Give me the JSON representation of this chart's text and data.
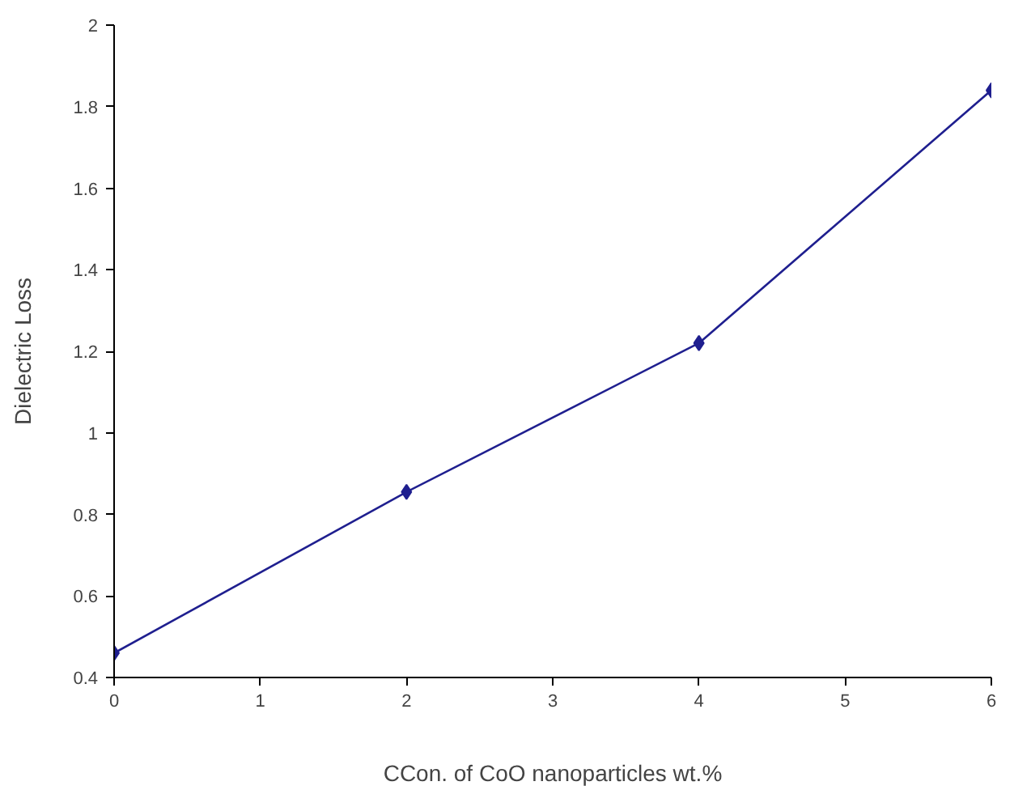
{
  "chart_data": {
    "type": "line",
    "xlabel": "CCon. of CoO nanoparticles wt.%",
    "ylabel": "Dielectric Loss",
    "x": [
      0,
      2,
      4,
      6
    ],
    "series": [
      {
        "color": "#1f1f8f",
        "values": [
          0.46,
          0.855,
          1.22,
          1.84
        ]
      }
    ],
    "xlim": [
      0,
      6
    ],
    "xticks": [
      0,
      1,
      2,
      3,
      4,
      5,
      6
    ],
    "ylim": [
      0.4,
      2
    ],
    "yticks": [
      0.4,
      0.6,
      0.8,
      1,
      1.2,
      1.4,
      1.6,
      1.8,
      2
    ],
    "marker": "diamond",
    "line_style": "solid"
  }
}
